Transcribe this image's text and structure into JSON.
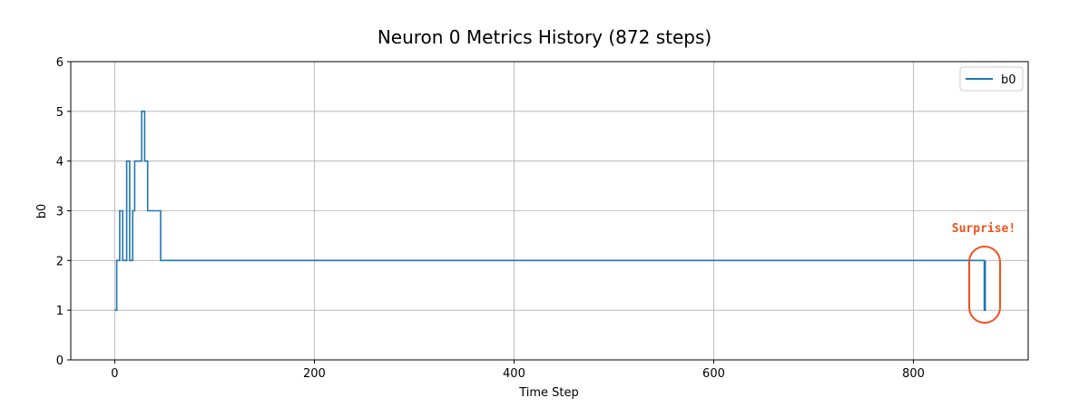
{
  "chart_data": {
    "type": "line",
    "title": "Neuron 0 Metrics History (872 steps)",
    "xlabel": "Time Step",
    "ylabel": "b0",
    "xlim": [
      -44,
      915
    ],
    "ylim": [
      0,
      6
    ],
    "xticks": [
      0,
      200,
      400,
      600,
      800
    ],
    "yticks": [
      0,
      1,
      2,
      3,
      4,
      5,
      6
    ],
    "grid": true,
    "legend_position": "top-right",
    "line_style": "step",
    "series": [
      {
        "name": "b0",
        "color": "#1f77b4",
        "x": [
          0,
          2,
          5,
          8,
          12,
          15,
          18,
          20,
          27,
          30,
          33,
          46,
          871,
          872
        ],
        "y": [
          1,
          2,
          3,
          2,
          4,
          2,
          3,
          4,
          5,
          4,
          3,
          2,
          1,
          2
        ]
      }
    ],
    "annotations": [
      {
        "text": "Surprise!",
        "x": 871,
        "y": 1.5,
        "color": "#f0521c"
      }
    ]
  }
}
